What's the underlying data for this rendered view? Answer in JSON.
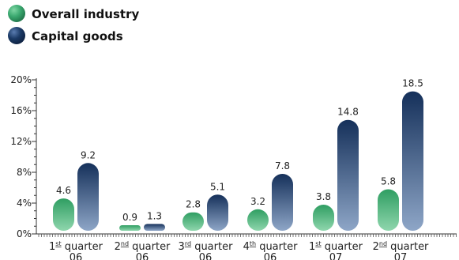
{
  "chart_data": {
    "type": "bar",
    "categories": [
      {
        "pre": "1",
        "sup": "st",
        "post": " quarter",
        "year": "06"
      },
      {
        "pre": "2",
        "sup": "nd",
        "post": " quarter",
        "year": "06"
      },
      {
        "pre": "3",
        "sup": "rd",
        "post": " quarter",
        "year": "06"
      },
      {
        "pre": "4",
        "sup": "th",
        "post": " quarter",
        "year": "06"
      },
      {
        "pre": "1",
        "sup": "st",
        "post": " quarter",
        "year": "07"
      },
      {
        "pre": "2",
        "sup": "nd",
        "post": " quarter",
        "year": "07"
      }
    ],
    "series": [
      {
        "name": "Overall industry",
        "color": "#3aa86f",
        "values": [
          4.6,
          0.9,
          2.8,
          3.2,
          3.8,
          5.8
        ],
        "labels": [
          "4.6",
          "0.9",
          "2.8",
          "3.2",
          "3.8",
          "5.8"
        ]
      },
      {
        "name": "Capital goods",
        "color": "#1b3a66",
        "values": [
          9.2,
          1.3,
          5.1,
          7.8,
          14.8,
          18.5
        ],
        "labels": [
          "9.2",
          "1.3",
          "5.1",
          "7.8",
          "14.8",
          "18.5"
        ]
      }
    ],
    "y_ticks": [
      "0%",
      "4%",
      "8%",
      "12%",
      "16%",
      "20%"
    ],
    "ylim": [
      0,
      20
    ],
    "legend_position": "top-left",
    "grid": false
  }
}
